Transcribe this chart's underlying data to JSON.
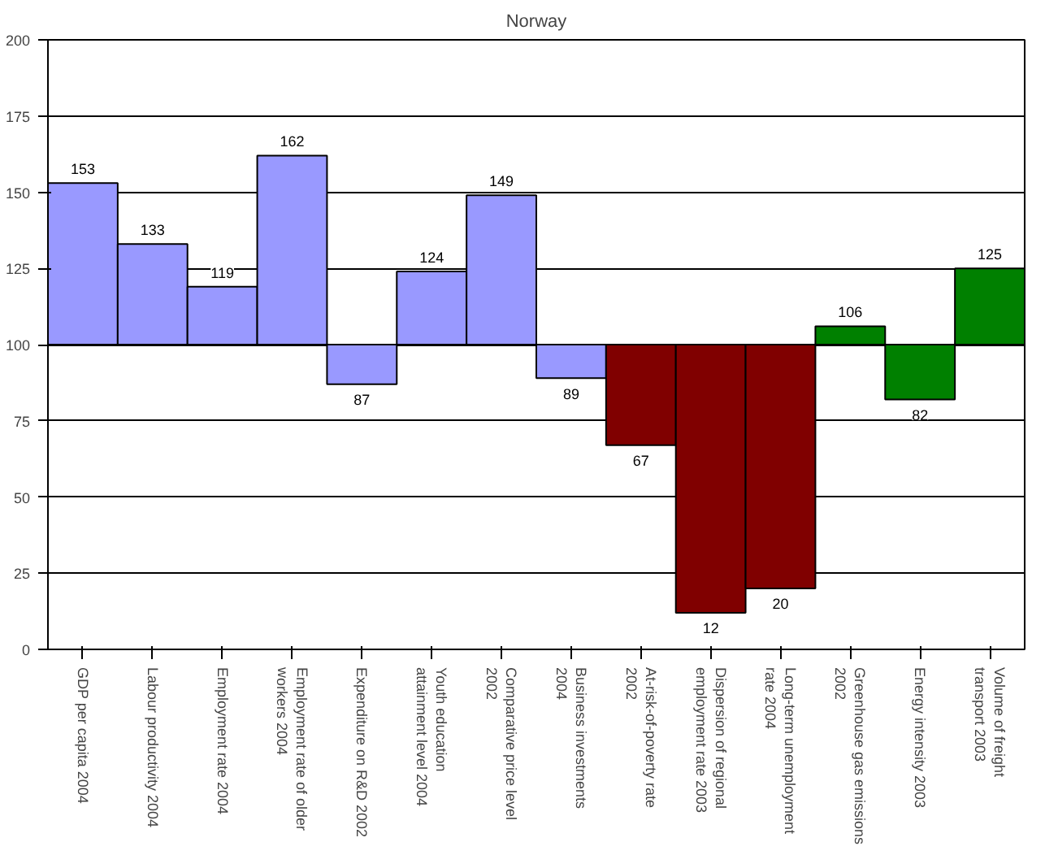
{
  "chart_data": {
    "type": "bar",
    "title": "Norway",
    "categories": [
      "GDP per capita 2004",
      "Labour productivity 2004",
      "Employment rate 2004",
      "Employment rate of older workers 2004",
      "Expenditure on R&D 2002",
      "Youth education attainment level 2004",
      "Comparative price level 2002",
      "Business investments 2004",
      "At-risk-of-poverty rate 2002",
      "Dispersion of regional employment rate 2003",
      "Long-term unemployment rate 2004",
      "Greenhouse gas emissions 2002",
      "Energy intensity 2003",
      "Volume of freight transport 2003"
    ],
    "base": [
      100,
      100,
      100,
      100,
      100,
      100,
      100,
      100,
      100,
      100,
      100,
      100,
      100,
      100
    ],
    "values": [
      53,
      33,
      19,
      62,
      -13,
      24,
      49,
      -11,
      -33,
      -88,
      -80,
      6,
      -18,
      25
    ],
    "value_labels": [
      "153",
      "133",
      "119",
      "162",
      "87",
      "124",
      "149",
      "89",
      "67",
      "12",
      "20",
      "106",
      "82",
      "125"
    ],
    "colors": [
      "#9999ff",
      "#9999ff",
      "#9999ff",
      "#9999ff",
      "#9999ff",
      "#9999ff",
      "#9999ff",
      "#9999ff",
      "#800000",
      "#800000",
      "#800000",
      "#008000",
      "#008000",
      "#008000"
    ],
    "ylim": [
      0,
      200
    ],
    "yticks": [
      0,
      25,
      50,
      75,
      100,
      125,
      150,
      175,
      200
    ],
    "grid": "y"
  }
}
